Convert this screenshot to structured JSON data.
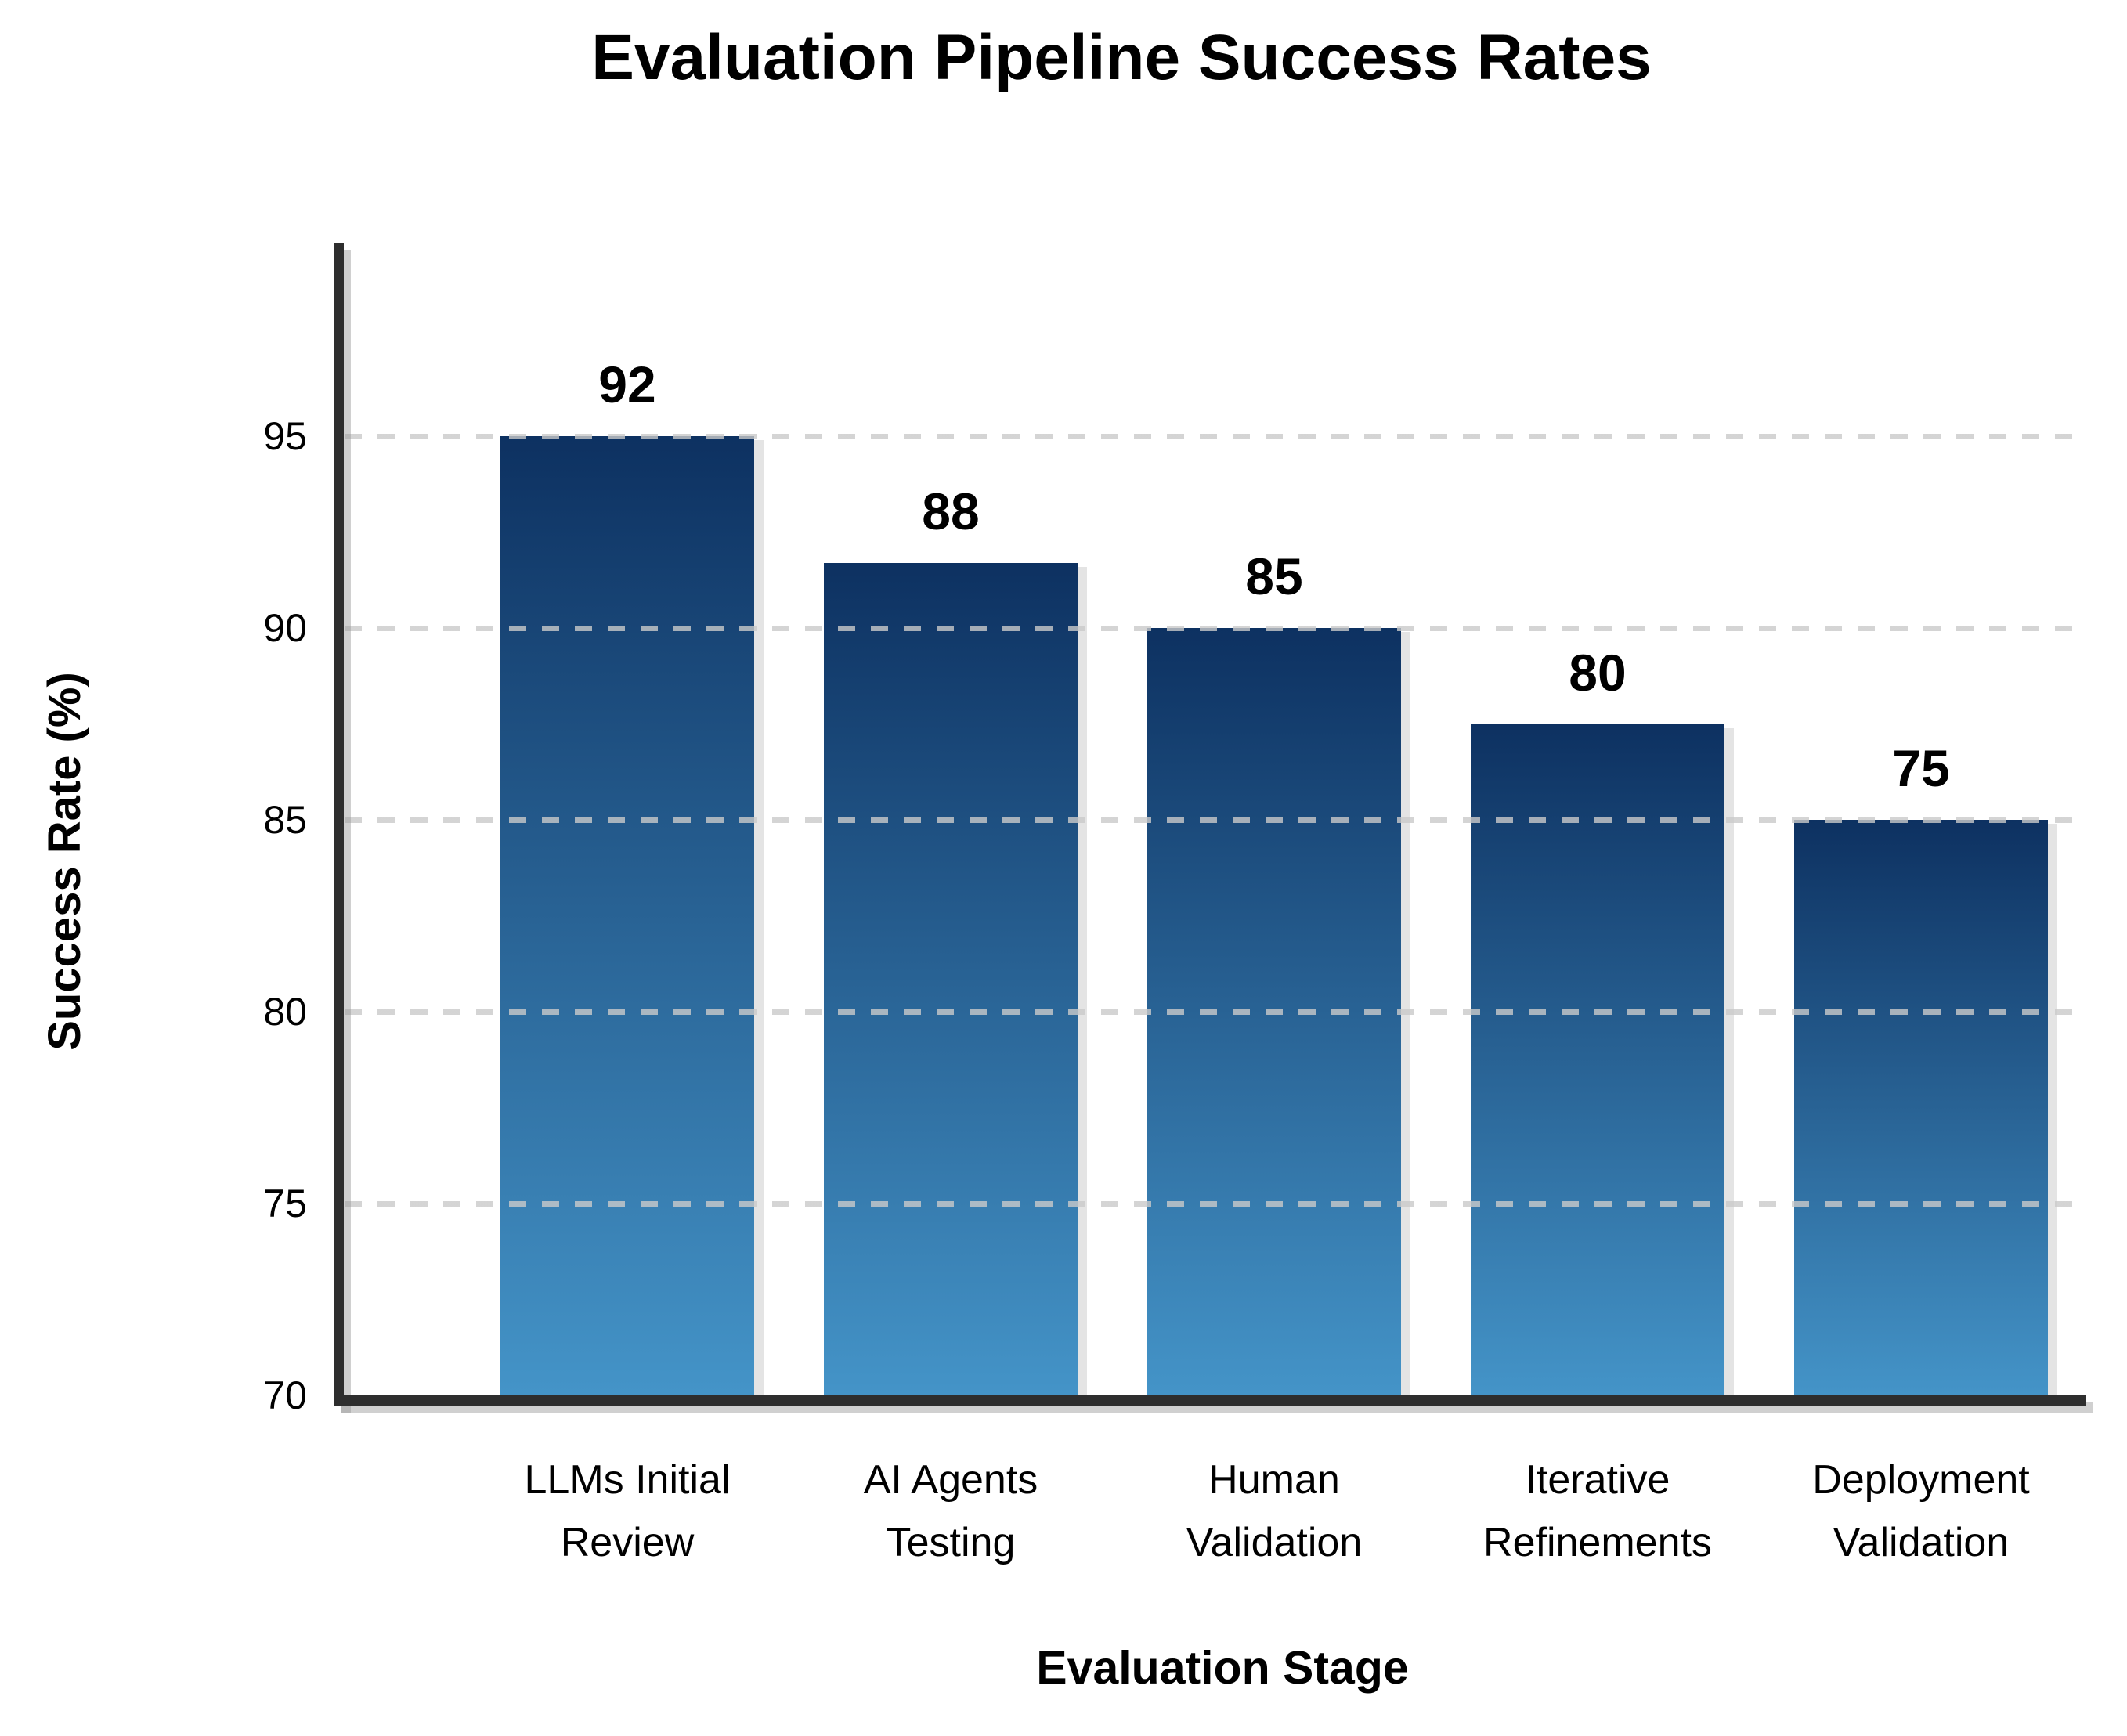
{
  "chart_data": {
    "type": "bar",
    "title": "Evaluation Pipeline Success Rates",
    "xlabel": "Evaluation Stage",
    "ylabel": "Success Rate (%)",
    "categories": [
      "LLMs Initial Review",
      "AI Agents Testing",
      "Human Validation",
      "Iterative Refinements",
      "Deployment Validation"
    ],
    "category_lines": [
      [
        "LLMs Initial",
        "Review"
      ],
      [
        "AI Agents",
        "Testing"
      ],
      [
        "Human",
        "Validation"
      ],
      [
        "Iterative",
        "Refinements"
      ],
      [
        "Deployment",
        "Validation"
      ]
    ],
    "values": [
      92,
      88,
      85,
      80,
      75
    ],
    "bar_top_axis_positions": [
      95,
      91.7,
      90,
      87.5,
      85
    ],
    "y_ticks": [
      95,
      90,
      85,
      80,
      75,
      70
    ],
    "ylim": [
      70,
      100
    ],
    "grid": "horizontal-dashed",
    "legend_position": "none",
    "colors": {
      "bar_gradient_top": "#0d3161",
      "bar_gradient_bottom": "#4494c8",
      "gridline": "rgba(202,202,202,0.8)",
      "axis": "#2e2e2e",
      "text": "#000000",
      "background": "#ffffff"
    }
  }
}
